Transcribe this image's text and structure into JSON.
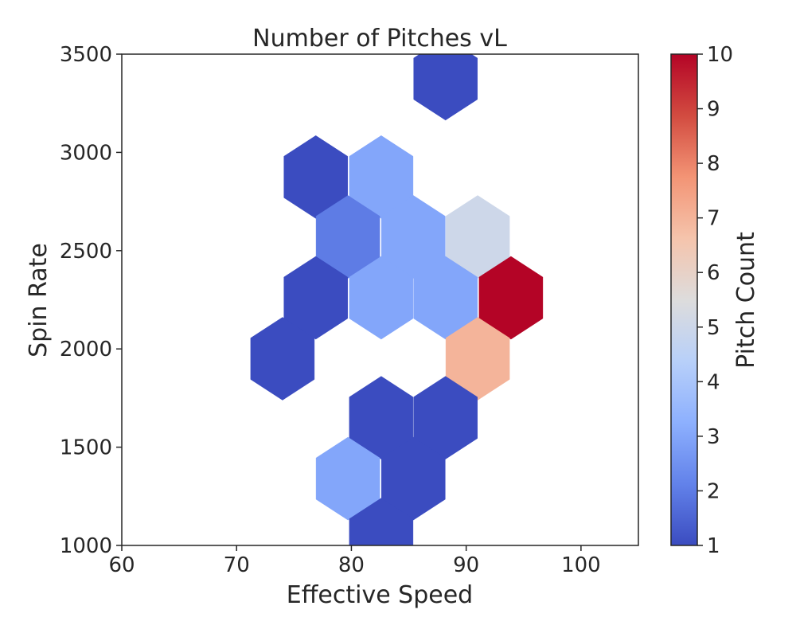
{
  "chart_data": {
    "type": "hexbin",
    "title": "Number of Pitches vL",
    "xlabel": "Effective Speed",
    "ylabel": "Spin Rate",
    "xlim": [
      60,
      105
    ],
    "ylim": [
      1000,
      3500
    ],
    "xticks": [
      "60",
      "70",
      "80",
      "90",
      "100"
    ],
    "yticks": [
      "1000",
      "1500",
      "2000",
      "2500",
      "3000",
      "3500"
    ],
    "grid": false,
    "colormap": "coolwarm",
    "colorbar": {
      "label": "Pitch Count",
      "min": 1,
      "max": 10,
      "ticks": [
        "1",
        "2",
        "3",
        "4",
        "5",
        "6",
        "7",
        "8",
        "9",
        "10"
      ],
      "stops": [
        "#3b4cc0",
        "#6282ea",
        "#8db0fe",
        "#b8d0f9",
        "#dddcdc",
        "#f5c4ac",
        "#f39475",
        "#d24b40",
        "#b40426"
      ]
    },
    "bins": [
      {
        "x": 88.2,
        "y": 3375,
        "count": 1
      },
      {
        "x": 76.9,
        "y": 2875,
        "count": 1
      },
      {
        "x": 82.6,
        "y": 2875,
        "count": 3
      },
      {
        "x": 79.7,
        "y": 2570,
        "count": 2
      },
      {
        "x": 85.4,
        "y": 2570,
        "count": 3
      },
      {
        "x": 91.0,
        "y": 2570,
        "count": 5
      },
      {
        "x": 76.9,
        "y": 2260,
        "count": 1
      },
      {
        "x": 82.6,
        "y": 2260,
        "count": 3
      },
      {
        "x": 88.2,
        "y": 2260,
        "count": 3
      },
      {
        "x": 93.9,
        "y": 2260,
        "count": 10
      },
      {
        "x": 74.0,
        "y": 1950,
        "count": 1
      },
      {
        "x": 91.0,
        "y": 1950,
        "count": 7
      },
      {
        "x": 82.6,
        "y": 1650,
        "count": 1
      },
      {
        "x": 88.2,
        "y": 1650,
        "count": 1
      },
      {
        "x": 79.7,
        "y": 1340,
        "count": 3
      },
      {
        "x": 85.4,
        "y": 1340,
        "count": 1
      },
      {
        "x": 82.6,
        "y": 1030,
        "count": 1
      }
    ]
  }
}
